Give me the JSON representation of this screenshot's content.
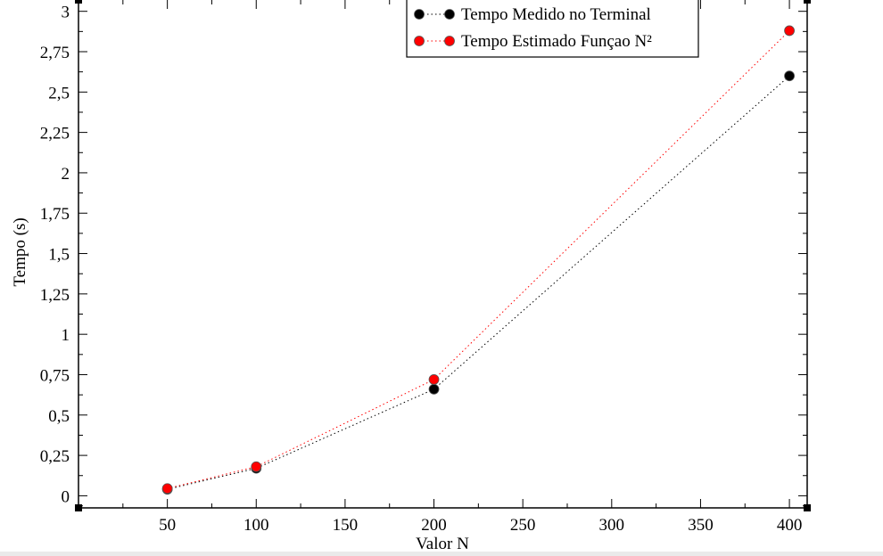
{
  "chart_data": {
    "type": "line",
    "xlabel": "Valor N",
    "ylabel": "Tempo (s)",
    "xlim": [
      0,
      410
    ],
    "ylim": [
      -0.075,
      3.07
    ],
    "x_ticks": [
      50,
      100,
      150,
      200,
      250,
      300,
      350,
      400
    ],
    "x_tick_labels": [
      "50",
      "100",
      "150",
      "200",
      "250",
      "300",
      "350",
      "400"
    ],
    "y_ticks": [
      0,
      0.25,
      0.5,
      0.75,
      1,
      1.25,
      1.5,
      1.75,
      2,
      2.25,
      2.5,
      2.75,
      3
    ],
    "y_tick_labels": [
      "0",
      "0,25",
      "0,5",
      "0,75",
      "1",
      "1,25",
      "1,5",
      "1,75",
      "2",
      "2,25",
      "2,5",
      "2,75",
      "3"
    ],
    "grid": false,
    "legend_position": "top-right",
    "series": [
      {
        "name": "Tempo Medido no Terminal",
        "color": "#000000",
        "line_style": "dotted",
        "x": [
          50,
          100,
          200,
          400
        ],
        "y": [
          0.04,
          0.17,
          0.66,
          2.6
        ]
      },
      {
        "name": "Tempo Estimado Funçao N²",
        "color": "#ff0000",
        "line_style": "dotted",
        "x": [
          50,
          100,
          200,
          400
        ],
        "y": [
          0.045,
          0.18,
          0.72,
          2.88
        ]
      }
    ]
  }
}
